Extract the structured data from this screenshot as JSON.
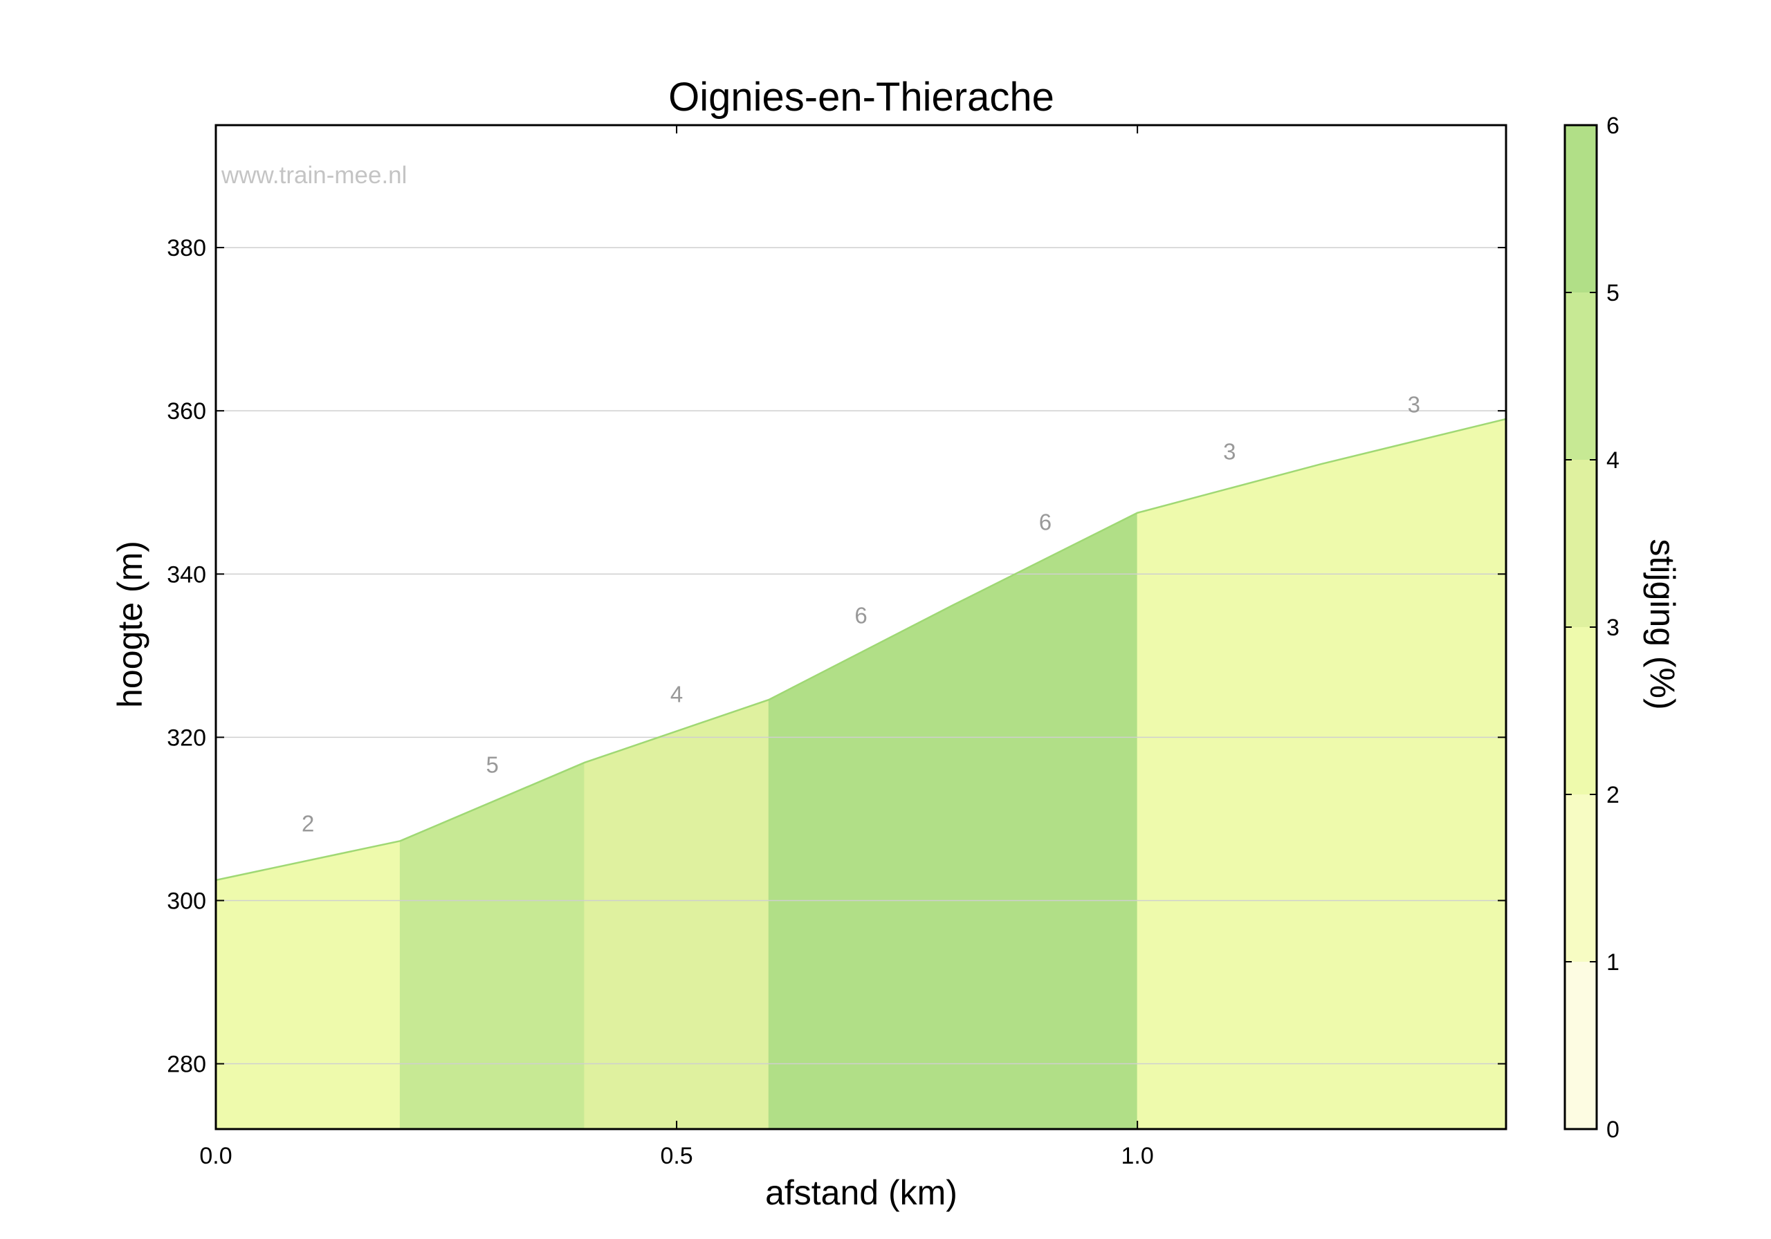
{
  "chart_data": {
    "type": "area",
    "title": "Oignies-en-Thierache",
    "xlabel": "afstand (km)",
    "ylabel": "hoogte (m)",
    "xlim": [
      0,
      1.4
    ],
    "ylim": [
      272,
      395
    ],
    "xticks": [
      0,
      0.5,
      1.0
    ],
    "xtick_labels": [
      "0.0",
      "0.5",
      "1.0"
    ],
    "yticks": [
      280,
      300,
      320,
      340,
      360,
      380
    ],
    "ytick_labels": [
      "280",
      "300",
      "320",
      "340",
      "360",
      "380"
    ],
    "grid": "horizontal",
    "watermark": "www.train-mee.nl",
    "profile_x": [
      0,
      0.2,
      0.4,
      0.6,
      0.8,
      1.0,
      1.2,
      1.4
    ],
    "profile_y": [
      302.5,
      307.3,
      316.9,
      324.6,
      336.2,
      347.5,
      353.5,
      359.0
    ],
    "segments": [
      {
        "x0": 0.0,
        "x1": 0.2,
        "gradient_label": "2",
        "color": "#eefaac"
      },
      {
        "x0": 0.2,
        "x1": 0.4,
        "gradient_label": "5",
        "color": "#c7e994"
      },
      {
        "x0": 0.4,
        "x1": 0.6,
        "gradient_label": "4",
        "color": "#dff19f"
      },
      {
        "x0": 0.6,
        "x1": 0.8,
        "gradient_label": "6",
        "color": "#b1df87"
      },
      {
        "x0": 0.8,
        "x1": 1.0,
        "gradient_label": "6",
        "color": "#b1df87"
      },
      {
        "x0": 1.0,
        "x1": 1.2,
        "gradient_label": "3",
        "color": "#eefaac"
      },
      {
        "x0": 1.2,
        "x1": 1.4,
        "gradient_label": "3",
        "color": "#eefaac"
      }
    ],
    "profile_line_color": "#9fd874",
    "colorbar": {
      "label": "stijging (%)",
      "min": 0,
      "max": 6,
      "ticks": [
        0,
        1,
        2,
        3,
        4,
        5,
        6
      ],
      "tick_labels": [
        "0",
        "1",
        "2",
        "3",
        "4",
        "5",
        "6"
      ],
      "bands": [
        {
          "from": 0,
          "to": 1,
          "color": "#fdfce2"
        },
        {
          "from": 1,
          "to": 2,
          "color": "#f7fcc3"
        },
        {
          "from": 2,
          "to": 3,
          "color": "#eefaac"
        },
        {
          "from": 3,
          "to": 4,
          "color": "#dff19f"
        },
        {
          "from": 4,
          "to": 5,
          "color": "#c7e994"
        },
        {
          "from": 5,
          "to": 6,
          "color": "#b1df87"
        }
      ]
    }
  }
}
